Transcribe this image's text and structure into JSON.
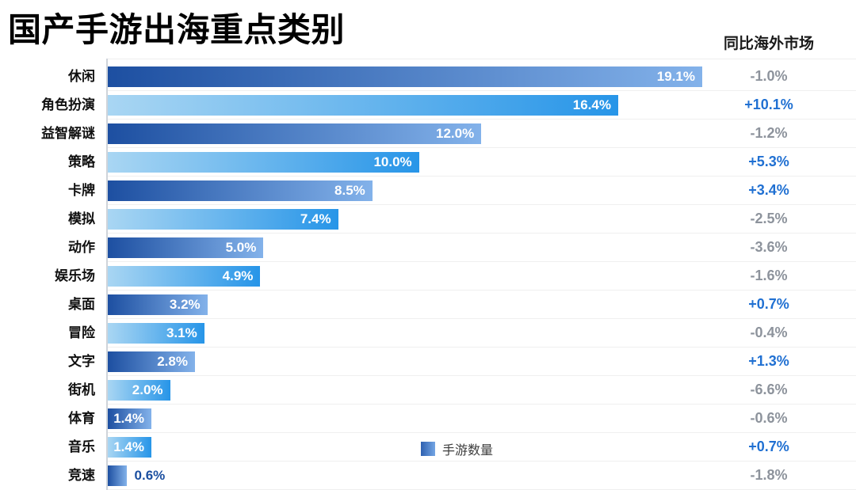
{
  "title": "国产手游出海重点类别",
  "yoy_header": "同比海外市场",
  "legend": {
    "label": "手游数量"
  },
  "colors": {
    "bar_dark_gradient_start": "#1d4fa1",
    "bar_dark_gradient_end": "#83b2ea",
    "bar_light_gradient_start": "#a9d6f3",
    "bar_light_gradient_end": "#2795e8",
    "yoy_positive": "#2070d2",
    "yoy_negative": "#8d939c",
    "bar_value_inside": "#ffffff",
    "bar_value_outside": "#1b4fa0",
    "title_text": "#000000"
  },
  "chart_data": {
    "type": "bar",
    "orientation": "horizontal",
    "title": "国产手游出海重点类别",
    "series_name": "手游数量",
    "categories": [
      "休闲",
      "角色扮演",
      "益智解谜",
      "策略",
      "卡牌",
      "模拟",
      "动作",
      "娱乐场",
      "桌面",
      "冒险",
      "文字",
      "街机",
      "体育",
      "音乐",
      "竞速"
    ],
    "values": [
      19.1,
      16.4,
      12.0,
      10.0,
      8.5,
      7.4,
      5.0,
      4.9,
      3.2,
      3.1,
      2.8,
      2.0,
      1.4,
      1.4,
      0.6
    ],
    "value_labels": [
      "19.1%",
      "16.4%",
      "12.0%",
      "10.0%",
      "8.5%",
      "7.4%",
      "5.0%",
      "4.9%",
      "3.2%",
      "3.1%",
      "2.8%",
      "2.0%",
      "1.4%",
      "1.4%",
      "0.6%"
    ],
    "yoy_column_label": "同比海外市场",
    "yoy_values": [
      "-1.0%",
      "+10.1%",
      "-1.2%",
      "+5.3%",
      "+3.4%",
      "-2.5%",
      "-3.6%",
      "-1.6%",
      "+0.7%",
      "-0.4%",
      "+1.3%",
      "-6.6%",
      "-0.6%",
      "+0.7%",
      "-1.8%"
    ],
    "unit": "%",
    "axis_max": 19.1,
    "bar_style_alternation": [
      "dark-gradient",
      "light-gradient"
    ],
    "grid": "horizontal-row-separators",
    "legend_position": "bottom-center-overlay"
  }
}
